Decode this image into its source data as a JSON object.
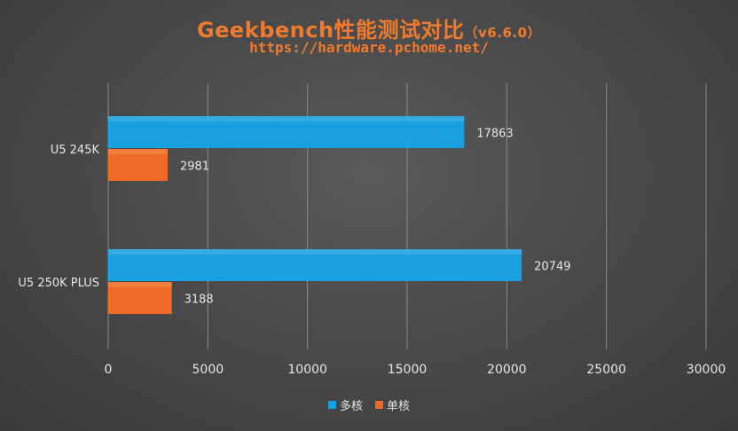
{
  "chart_data": {
    "type": "bar",
    "orientation": "horizontal",
    "title_main": "Geekbench性能测试对比",
    "title_version": "（v6.6.0）",
    "subtitle": "https://hardware.pchome.net/",
    "categories": [
      "U5 245K",
      "U5 250K PLUS"
    ],
    "series": [
      {
        "name": "多核",
        "color": "#1a9fe0",
        "values": [
          17863,
          20749
        ]
      },
      {
        "name": "单核",
        "color": "#ee6a25",
        "values": [
          2981,
          3188
        ]
      }
    ],
    "xlim": [
      0,
      30000
    ],
    "xticks": [
      0,
      5000,
      10000,
      15000,
      20000,
      25000,
      30000
    ],
    "xtick_labels": [
      "0",
      "5000",
      "10000",
      "15000",
      "20000",
      "25000",
      "30000"
    ],
    "data_labels": [
      [
        "17863",
        "20749"
      ],
      [
        "2981",
        "3188"
      ]
    ],
    "grid": "vertical",
    "legend_position": "bottom"
  }
}
